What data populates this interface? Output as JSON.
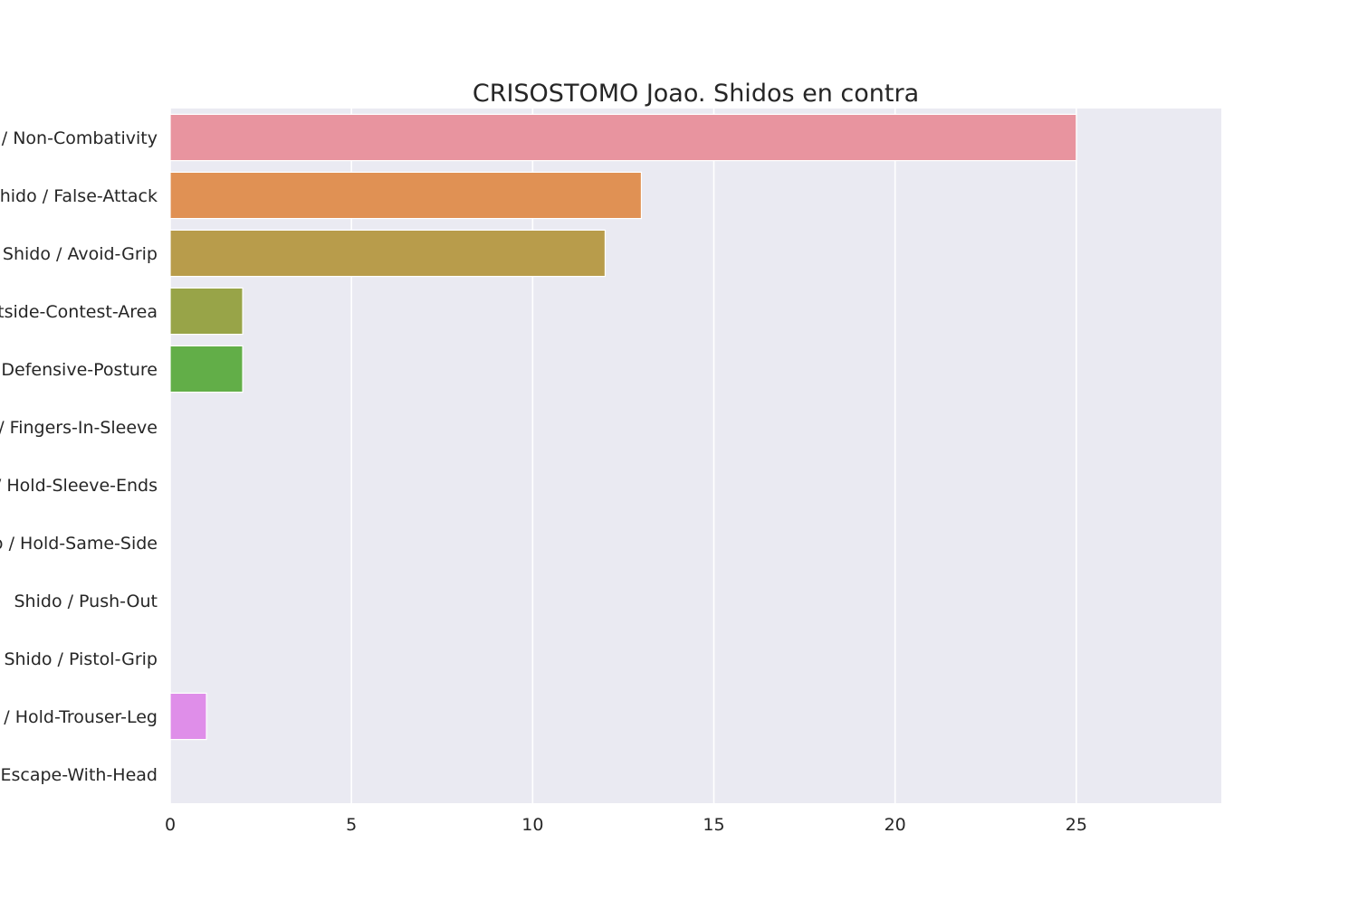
{
  "chart_data": {
    "type": "bar",
    "orientation": "horizontal",
    "title": "CRISOSTOMO Joao. Shidos en contra",
    "xlabel": "",
    "ylabel": "",
    "xlim": [
      0,
      29
    ],
    "grid": true,
    "legend": "none",
    "categories": [
      "Shido / Non-Combativity",
      "Shido / False-Attack",
      "Shido / Avoid-Grip",
      "Shido / Outside-Contest-Area",
      "Shido / Defensive-Posture",
      "Shido / Fingers-In-Sleeve",
      "Shido / Hold-Sleeve-Ends",
      "Shido / Hold-Same-Side",
      "Shido / Push-Out",
      "Shido / Pistol-Grip",
      "Shido / Hold-Trouser-Leg",
      "Shido / Escape-With-Head"
    ],
    "values": [
      25,
      13,
      12,
      2,
      2,
      0,
      0,
      0,
      0,
      0,
      1,
      0
    ],
    "colors": [
      "#e8949f",
      "#e09154",
      "#b89c4b",
      "#98a448",
      "#62ae48",
      "#4caf8e",
      "#4eab9e",
      "#52a8b8",
      "#5ba3d8",
      "#9a9ae8",
      "#df8ee9",
      "#e98fcc"
    ],
    "xticks": [
      0,
      5,
      10,
      15,
      20,
      25
    ]
  }
}
